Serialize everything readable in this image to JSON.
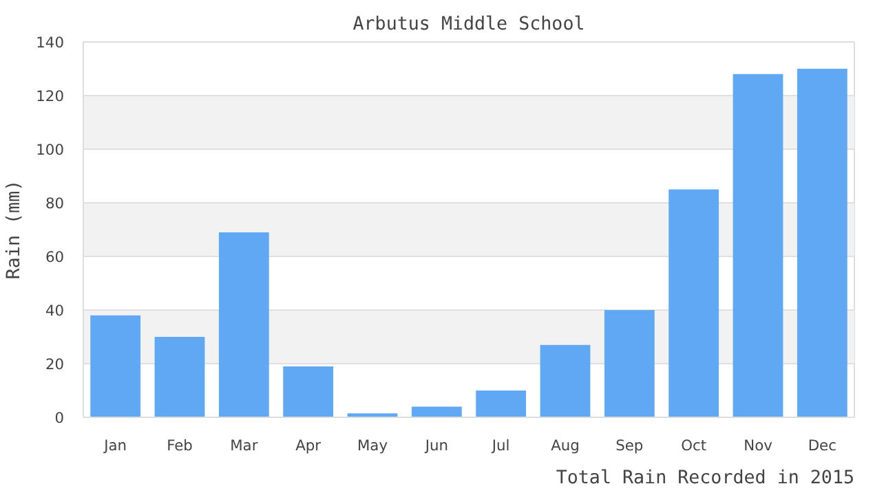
{
  "chart_data": {
    "type": "bar",
    "title": "Arbutus Middle School",
    "xlabel": "Total Rain Recorded in 2015",
    "ylabel": "Rain (mm)",
    "categories": [
      "Jan",
      "Feb",
      "Mar",
      "Apr",
      "May",
      "Jun",
      "Jul",
      "Aug",
      "Sep",
      "Oct",
      "Nov",
      "Dec"
    ],
    "values": [
      38,
      30,
      69,
      19,
      1.5,
      4,
      10,
      27,
      40,
      85,
      128,
      130
    ],
    "color": "#60a8f4",
    "ylim": [
      0,
      140
    ],
    "yticks": [
      0,
      20,
      40,
      60,
      80,
      100,
      120,
      140
    ],
    "grid": "y"
  }
}
